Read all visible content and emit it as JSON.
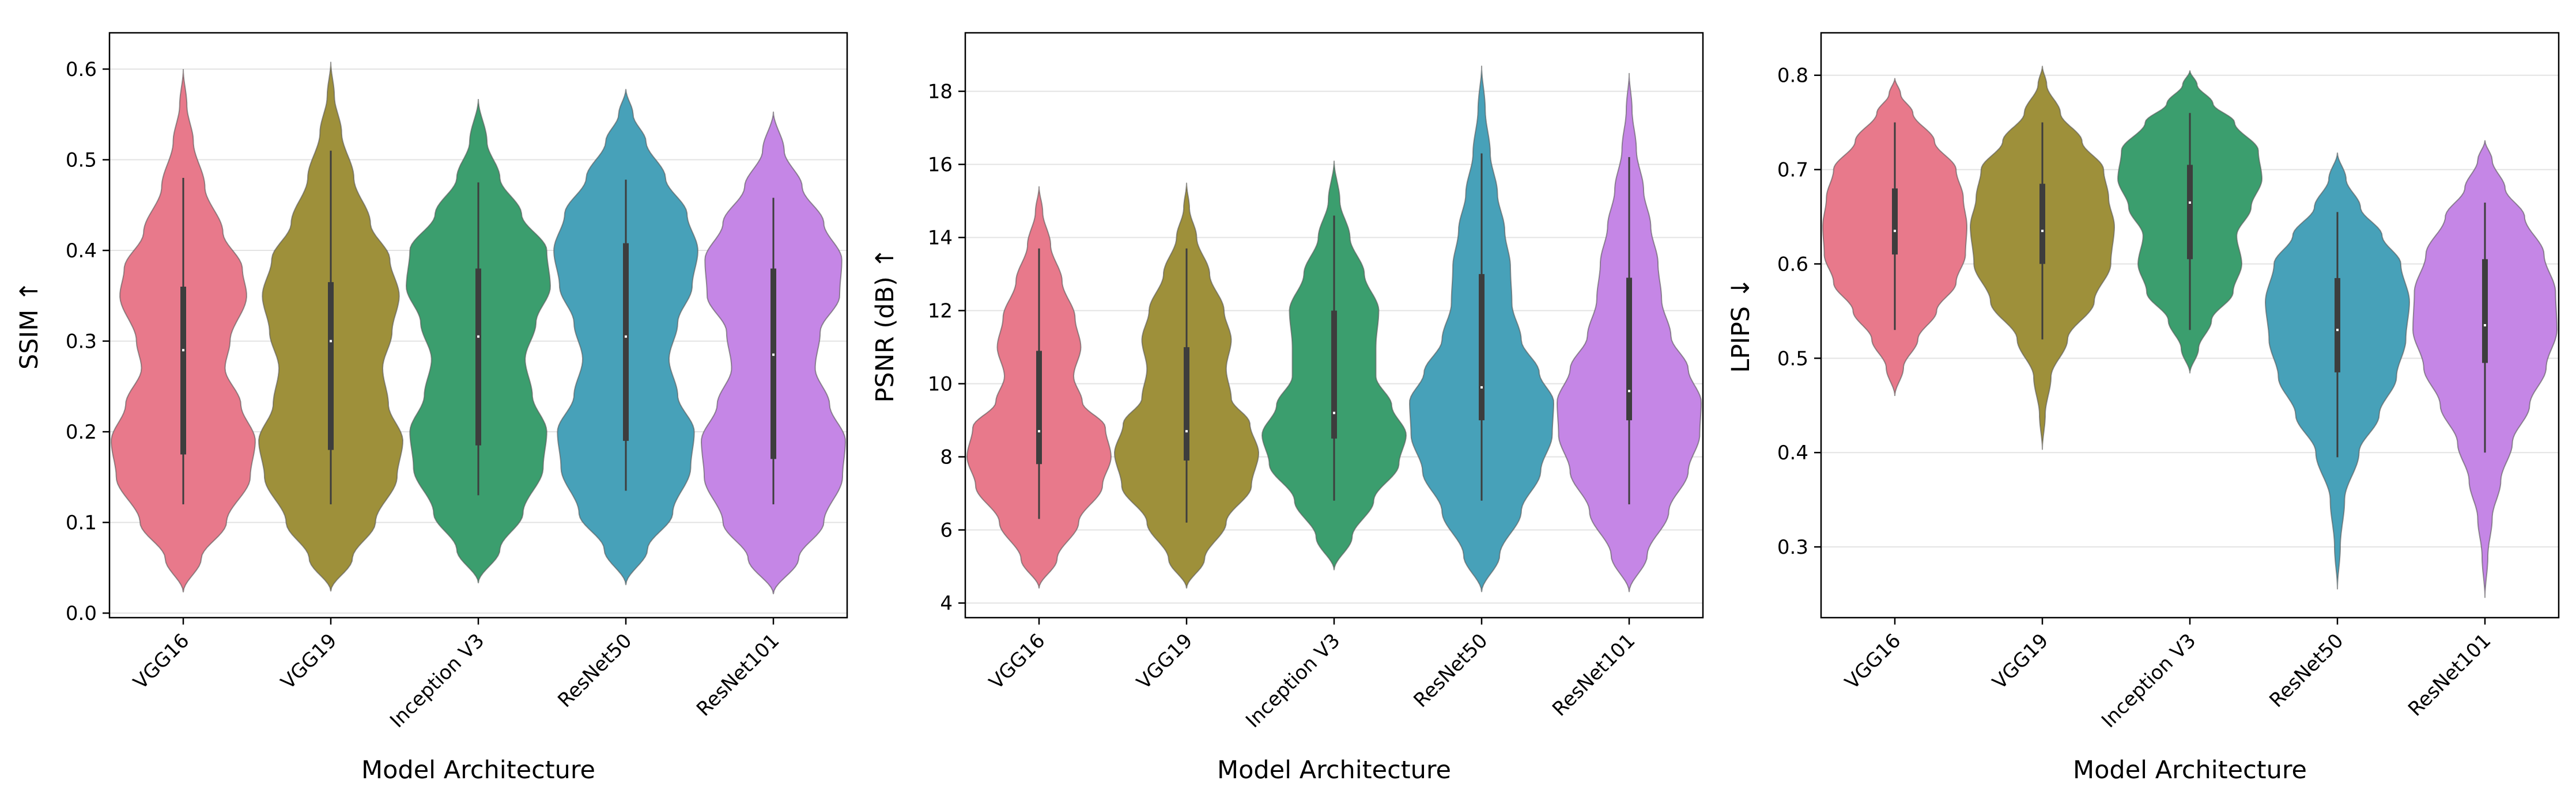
{
  "chart_data": [
    {
      "type": "violin",
      "title": "",
      "xlabel": "Model Architecture",
      "ylabel": "SSIM ↑",
      "ylim": [
        -0.005,
        0.64
      ],
      "yticks": [
        0.0,
        0.1,
        0.2,
        0.3,
        0.4,
        0.5,
        0.6
      ],
      "ytick_labels": [
        "0.0",
        "0.1",
        "0.2",
        "0.3",
        "0.4",
        "0.5",
        "0.6"
      ],
      "grid": "horizontal",
      "categories": [
        "VGG16",
        "VGG19",
        "Inception V3",
        "ResNet50",
        "ResNet101"
      ],
      "colors": [
        "#e8798b",
        "#9e903a",
        "#3b9e6e",
        "#47a1b9",
        "#c586e6"
      ],
      "violins": [
        {
          "min": 0.023,
          "max": 0.6,
          "q1": 0.175,
          "median": 0.29,
          "q3": 0.36,
          "whisker_low": 0.12,
          "whisker_high": 0.48,
          "profile": [
            [
              0.023,
              0.0
            ],
            [
              0.06,
              0.25
            ],
            [
              0.1,
              0.6
            ],
            [
              0.15,
              0.93
            ],
            [
              0.19,
              1.0
            ],
            [
              0.23,
              0.8
            ],
            [
              0.27,
              0.58
            ],
            [
              0.3,
              0.65
            ],
            [
              0.35,
              0.88
            ],
            [
              0.38,
              0.82
            ],
            [
              0.42,
              0.55
            ],
            [
              0.47,
              0.3
            ],
            [
              0.52,
              0.14
            ],
            [
              0.56,
              0.05
            ],
            [
              0.6,
              0.0
            ]
          ]
        },
        {
          "min": 0.024,
          "max": 0.608,
          "q1": 0.18,
          "median": 0.3,
          "q3": 0.365,
          "whisker_low": 0.12,
          "whisker_high": 0.51,
          "profile": [
            [
              0.024,
              0.0
            ],
            [
              0.06,
              0.3
            ],
            [
              0.1,
              0.62
            ],
            [
              0.15,
              0.92
            ],
            [
              0.19,
              1.0
            ],
            [
              0.23,
              0.8
            ],
            [
              0.27,
              0.72
            ],
            [
              0.31,
              0.85
            ],
            [
              0.35,
              0.95
            ],
            [
              0.39,
              0.82
            ],
            [
              0.43,
              0.55
            ],
            [
              0.48,
              0.32
            ],
            [
              0.53,
              0.15
            ],
            [
              0.57,
              0.05
            ],
            [
              0.608,
              0.0
            ]
          ]
        },
        {
          "min": 0.033,
          "max": 0.567,
          "q1": 0.185,
          "median": 0.305,
          "q3": 0.38,
          "whisker_low": 0.13,
          "whisker_high": 0.475,
          "profile": [
            [
              0.033,
              0.0
            ],
            [
              0.07,
              0.3
            ],
            [
              0.11,
              0.62
            ],
            [
              0.16,
              0.9
            ],
            [
              0.2,
              0.95
            ],
            [
              0.24,
              0.75
            ],
            [
              0.28,
              0.65
            ],
            [
              0.32,
              0.8
            ],
            [
              0.36,
              1.0
            ],
            [
              0.4,
              0.95
            ],
            [
              0.44,
              0.6
            ],
            [
              0.48,
              0.3
            ],
            [
              0.52,
              0.12
            ],
            [
              0.567,
              0.0
            ]
          ]
        },
        {
          "min": 0.031,
          "max": 0.578,
          "q1": 0.19,
          "median": 0.305,
          "q3": 0.408,
          "whisker_low": 0.135,
          "whisker_high": 0.478,
          "profile": [
            [
              0.031,
              0.0
            ],
            [
              0.07,
              0.3
            ],
            [
              0.11,
              0.65
            ],
            [
              0.16,
              0.9
            ],
            [
              0.2,
              0.95
            ],
            [
              0.24,
              0.72
            ],
            [
              0.28,
              0.6
            ],
            [
              0.32,
              0.72
            ],
            [
              0.36,
              0.92
            ],
            [
              0.4,
              1.0
            ],
            [
              0.44,
              0.85
            ],
            [
              0.48,
              0.55
            ],
            [
              0.52,
              0.28
            ],
            [
              0.55,
              0.1
            ],
            [
              0.578,
              0.0
            ]
          ]
        },
        {
          "min": 0.021,
          "max": 0.553,
          "q1": 0.17,
          "median": 0.285,
          "q3": 0.38,
          "whisker_low": 0.12,
          "whisker_high": 0.458,
          "profile": [
            [
              0.021,
              0.0
            ],
            [
              0.06,
              0.35
            ],
            [
              0.1,
              0.7
            ],
            [
              0.15,
              0.96
            ],
            [
              0.19,
              1.0
            ],
            [
              0.23,
              0.78
            ],
            [
              0.27,
              0.58
            ],
            [
              0.31,
              0.65
            ],
            [
              0.35,
              0.92
            ],
            [
              0.39,
              0.95
            ],
            [
              0.43,
              0.7
            ],
            [
              0.47,
              0.4
            ],
            [
              0.51,
              0.15
            ],
            [
              0.553,
              0.0
            ]
          ]
        }
      ]
    },
    {
      "type": "violin",
      "title": "",
      "xlabel": "Model Architecture",
      "ylabel": "PSNR (dB) ↑",
      "ylim": [
        3.6,
        19.6
      ],
      "yticks": [
        4,
        6,
        8,
        10,
        12,
        14,
        16,
        18
      ],
      "ytick_labels": [
        "4",
        "6",
        "8",
        "10",
        "12",
        "14",
        "16",
        "18"
      ],
      "grid": "horizontal",
      "categories": [
        "VGG16",
        "VGG19",
        "Inception V3",
        "ResNet50",
        "ResNet101"
      ],
      "colors": [
        "#e8798b",
        "#9e903a",
        "#3b9e6e",
        "#47a1b9",
        "#c586e6"
      ],
      "violins": [
        {
          "min": 4.4,
          "max": 15.4,
          "q1": 7.8,
          "median": 8.7,
          "q3": 10.9,
          "whisker_low": 6.3,
          "whisker_high": 13.7,
          "profile": [
            [
              4.4,
              0.0
            ],
            [
              5.2,
              0.25
            ],
            [
              6.2,
              0.55
            ],
            [
              7.2,
              0.88
            ],
            [
              8.0,
              1.0
            ],
            [
              8.8,
              0.92
            ],
            [
              9.5,
              0.6
            ],
            [
              10.2,
              0.48
            ],
            [
              11.0,
              0.58
            ],
            [
              11.8,
              0.5
            ],
            [
              12.8,
              0.32
            ],
            [
              13.8,
              0.16
            ],
            [
              14.7,
              0.05
            ],
            [
              15.4,
              0.0
            ]
          ]
        },
        {
          "min": 4.4,
          "max": 15.5,
          "q1": 7.9,
          "median": 8.7,
          "q3": 11.0,
          "whisker_low": 6.2,
          "whisker_high": 13.7,
          "profile": [
            [
              4.4,
              0.0
            ],
            [
              5.2,
              0.25
            ],
            [
              6.2,
              0.55
            ],
            [
              7.2,
              0.9
            ],
            [
              8.1,
              1.0
            ],
            [
              8.9,
              0.88
            ],
            [
              9.6,
              0.62
            ],
            [
              10.4,
              0.55
            ],
            [
              11.2,
              0.62
            ],
            [
              12.0,
              0.52
            ],
            [
              13.0,
              0.32
            ],
            [
              14.0,
              0.14
            ],
            [
              14.8,
              0.04
            ],
            [
              15.5,
              0.0
            ]
          ]
        },
        {
          "min": 4.9,
          "max": 16.1,
          "q1": 8.5,
          "median": 9.2,
          "q3": 12.0,
          "whisker_low": 6.8,
          "whisker_high": 14.6,
          "profile": [
            [
              4.9,
              0.0
            ],
            [
              5.8,
              0.25
            ],
            [
              6.8,
              0.55
            ],
            [
              7.8,
              0.9
            ],
            [
              8.6,
              1.0
            ],
            [
              9.4,
              0.8
            ],
            [
              10.2,
              0.58
            ],
            [
              11.0,
              0.58
            ],
            [
              12.0,
              0.62
            ],
            [
              13.0,
              0.42
            ],
            [
              14.0,
              0.22
            ],
            [
              15.0,
              0.08
            ],
            [
              16.1,
              0.0
            ]
          ]
        },
        {
          "min": 4.3,
          "max": 18.7,
          "q1": 9.0,
          "median": 9.9,
          "q3": 13.0,
          "whisker_low": 6.8,
          "whisker_high": 16.3,
          "profile": [
            [
              4.3,
              0.0
            ],
            [
              5.3,
              0.25
            ],
            [
              6.5,
              0.55
            ],
            [
              7.6,
              0.82
            ],
            [
              8.6,
              0.98
            ],
            [
              9.5,
              1.0
            ],
            [
              10.3,
              0.8
            ],
            [
              11.2,
              0.55
            ],
            [
              12.2,
              0.42
            ],
            [
              13.2,
              0.4
            ],
            [
              14.2,
              0.32
            ],
            [
              15.2,
              0.22
            ],
            [
              16.3,
              0.12
            ],
            [
              17.5,
              0.05
            ],
            [
              18.7,
              0.0
            ]
          ]
        },
        {
          "min": 4.3,
          "max": 18.5,
          "q1": 9.0,
          "median": 9.8,
          "q3": 12.9,
          "whisker_low": 6.7,
          "whisker_high": 16.2,
          "profile": [
            [
              4.3,
              0.0
            ],
            [
              5.3,
              0.25
            ],
            [
              6.5,
              0.55
            ],
            [
              7.6,
              0.82
            ],
            [
              8.6,
              0.98
            ],
            [
              9.5,
              1.0
            ],
            [
              10.4,
              0.82
            ],
            [
              11.3,
              0.58
            ],
            [
              12.3,
              0.45
            ],
            [
              13.3,
              0.4
            ],
            [
              14.3,
              0.3
            ],
            [
              15.3,
              0.2
            ],
            [
              16.4,
              0.1
            ],
            [
              17.5,
              0.04
            ],
            [
              18.5,
              0.0
            ]
          ]
        }
      ]
    },
    {
      "type": "violin",
      "title": "",
      "xlabel": "Model Architecture",
      "ylabel": "LPIPS ↓",
      "ylim": [
        0.225,
        0.845
      ],
      "yticks": [
        0.3,
        0.4,
        0.5,
        0.6,
        0.7,
        0.8
      ],
      "ytick_labels": [
        "0.3",
        "0.4",
        "0.5",
        "0.6",
        "0.7",
        "0.8"
      ],
      "grid": "horizontal",
      "categories": [
        "VGG16",
        "VGG19",
        "Inception V3",
        "ResNet50",
        "ResNet101"
      ],
      "colors": [
        "#e8798b",
        "#9e903a",
        "#3b9e6e",
        "#47a1b9",
        "#c586e6"
      ],
      "violins": [
        {
          "min": 0.46,
          "max": 0.797,
          "q1": 0.61,
          "median": 0.635,
          "q3": 0.68,
          "whisker_low": 0.53,
          "whisker_high": 0.75,
          "profile": [
            [
              0.46,
              0.0
            ],
            [
              0.49,
              0.12
            ],
            [
              0.52,
              0.32
            ],
            [
              0.55,
              0.58
            ],
            [
              0.58,
              0.85
            ],
            [
              0.61,
              0.98
            ],
            [
              0.64,
              1.0
            ],
            [
              0.67,
              0.95
            ],
            [
              0.7,
              0.85
            ],
            [
              0.73,
              0.55
            ],
            [
              0.76,
              0.25
            ],
            [
              0.78,
              0.08
            ],
            [
              0.797,
              0.0
            ]
          ]
        },
        {
          "min": 0.403,
          "max": 0.81,
          "q1": 0.6,
          "median": 0.635,
          "q3": 0.685,
          "whisker_low": 0.52,
          "whisker_high": 0.75,
          "profile": [
            [
              0.403,
              0.0
            ],
            [
              0.44,
              0.04
            ],
            [
              0.48,
              0.12
            ],
            [
              0.52,
              0.35
            ],
            [
              0.56,
              0.72
            ],
            [
              0.6,
              0.95
            ],
            [
              0.64,
              1.0
            ],
            [
              0.67,
              0.92
            ],
            [
              0.7,
              0.85
            ],
            [
              0.73,
              0.55
            ],
            [
              0.76,
              0.25
            ],
            [
              0.79,
              0.06
            ],
            [
              0.81,
              0.0
            ]
          ]
        },
        {
          "min": 0.484,
          "max": 0.805,
          "q1": 0.605,
          "median": 0.665,
          "q3": 0.705,
          "whisker_low": 0.53,
          "whisker_high": 0.76,
          "profile": [
            [
              0.484,
              0.0
            ],
            [
              0.51,
              0.12
            ],
            [
              0.54,
              0.3
            ],
            [
              0.57,
              0.6
            ],
            [
              0.6,
              0.72
            ],
            [
              0.63,
              0.65
            ],
            [
              0.66,
              0.85
            ],
            [
              0.69,
              1.0
            ],
            [
              0.72,
              0.95
            ],
            [
              0.75,
              0.62
            ],
            [
              0.77,
              0.32
            ],
            [
              0.79,
              0.1
            ],
            [
              0.805,
              0.0
            ]
          ]
        },
        {
          "min": 0.255,
          "max": 0.718,
          "q1": 0.485,
          "median": 0.53,
          "q3": 0.585,
          "whisker_low": 0.395,
          "whisker_high": 0.655,
          "profile": [
            [
              0.255,
              0.0
            ],
            [
              0.3,
              0.04
            ],
            [
              0.35,
              0.1
            ],
            [
              0.4,
              0.3
            ],
            [
              0.44,
              0.58
            ],
            [
              0.48,
              0.82
            ],
            [
              0.52,
              0.95
            ],
            [
              0.56,
              1.0
            ],
            [
              0.6,
              0.88
            ],
            [
              0.63,
              0.62
            ],
            [
              0.66,
              0.32
            ],
            [
              0.69,
              0.12
            ],
            [
              0.718,
              0.0
            ]
          ]
        },
        {
          "min": 0.246,
          "max": 0.731,
          "q1": 0.495,
          "median": 0.535,
          "q3": 0.605,
          "whisker_low": 0.4,
          "whisker_high": 0.665,
          "profile": [
            [
              0.246,
              0.0
            ],
            [
              0.29,
              0.04
            ],
            [
              0.33,
              0.1
            ],
            [
              0.37,
              0.22
            ],
            [
              0.41,
              0.38
            ],
            [
              0.45,
              0.62
            ],
            [
              0.49,
              0.85
            ],
            [
              0.53,
              1.0
            ],
            [
              0.57,
              0.98
            ],
            [
              0.61,
              0.82
            ],
            [
              0.65,
              0.55
            ],
            [
              0.68,
              0.28
            ],
            [
              0.71,
              0.1
            ],
            [
              0.731,
              0.0
            ]
          ]
        }
      ]
    }
  ]
}
